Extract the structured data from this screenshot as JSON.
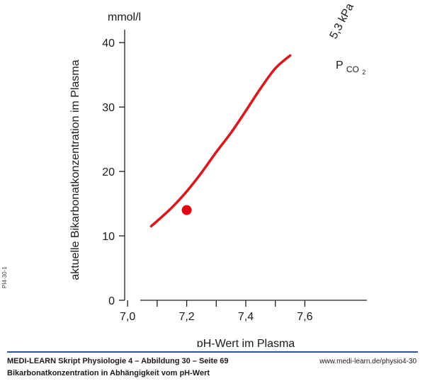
{
  "chart_data": {
    "type": "line",
    "xlabel": "pH-Wert im Plasma",
    "ylabel": "aktuelle Bikarbonatkonzentration im Plasma",
    "y_unit": "mmol/l",
    "xlim": [
      6.99,
      7.81
    ],
    "ylim": [
      0,
      42
    ],
    "x_ticks": [
      7.0,
      7.1,
      7.2,
      7.3,
      7.4,
      7.5,
      7.6
    ],
    "x_tick_labels": [
      "7,0",
      "",
      "7,2",
      "",
      "7,4",
      "",
      "7,6"
    ],
    "y_ticks": [
      0,
      10,
      20,
      30,
      40
    ],
    "y_tick_labels": [
      "0",
      "10",
      "20",
      "30",
      "40"
    ],
    "grid": false,
    "series": [
      {
        "name": "5,3 kPa",
        "color": "#d7191f",
        "x": [
          7.08,
          7.1,
          7.15,
          7.2,
          7.25,
          7.3,
          7.35,
          7.4,
          7.45,
          7.5,
          7.55
        ],
        "y": [
          11.5,
          12.3,
          14.4,
          16.9,
          19.8,
          23.0,
          26.0,
          29.4,
          32.9,
          36.0,
          38.0
        ]
      }
    ],
    "points": [
      {
        "x": 7.2,
        "y": 14.0,
        "color": "#e3000f"
      }
    ],
    "annotations": {
      "curve_value": "5,3 kPa",
      "curve_symbol_main": "P",
      "curve_symbol_sub": "CO",
      "curve_symbol_subsub": "2"
    }
  },
  "side_code": "PI4-30-1",
  "footer": {
    "title": "MEDI-LEARN Skript Physiologie 4 – Abbildung 30 – Seite 69",
    "subtitle": "Bikarbonatkonzentration in Abhängigkeit vom pH-Wert",
    "url": "www.medi-learn.de/physio4-30"
  }
}
